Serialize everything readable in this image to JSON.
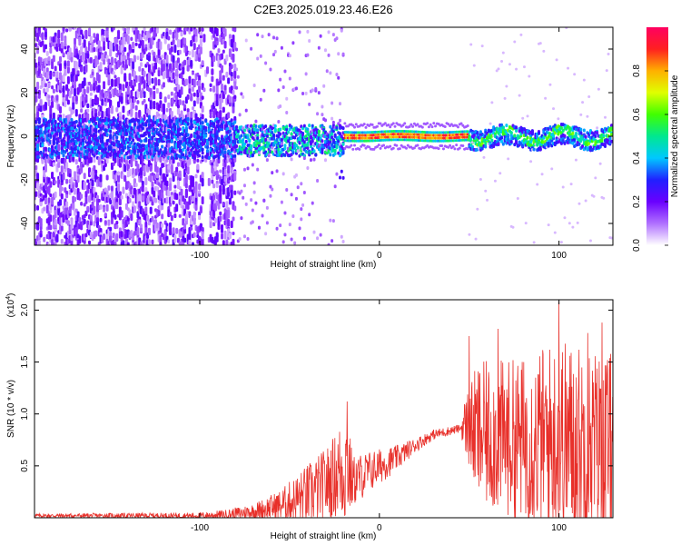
{
  "title": "C2E3.2025.019.23.46.E26",
  "chart_data": [
    {
      "type": "heatmap",
      "xlabel": "Height of straight line (km)",
      "ylabel": "Frequency (Hz)",
      "xlim": [
        -192,
        130
      ],
      "ylim": [
        -50,
        50
      ],
      "xticks": [
        -100,
        0,
        100
      ],
      "yticks": [
        40,
        20,
        0,
        -20,
        -40
      ],
      "colorbar": {
        "label": "Normalized spectral amplitude",
        "range": [
          0,
          1
        ],
        "ticks": [
          0.0,
          0.2,
          0.4,
          0.6,
          0.8
        ],
        "colormap": "white-violet-blue-cyan-green-yellow-red",
        "stops": [
          "#ffffff",
          "#b070ff",
          "#6a00ff",
          "#2020ff",
          "#00c8ff",
          "#00e890",
          "#40ff00",
          "#e0ff00",
          "#ffb000",
          "#ff2020",
          "#ff0060"
        ]
      },
      "features": [
        {
          "region": "x < -80",
          "description": "diffuse broadband violet speckle, stronger band near 0 Hz"
        },
        {
          "region": "-80 to -20",
          "description": "narrowing band 0 to -10 Hz, blue/cyan"
        },
        {
          "region": "-20 to 50",
          "description": "tight band near 0 Hz, red/green core"
        },
        {
          "region": "50 to 130",
          "description": "band near 0 Hz, cyan/green"
        }
      ]
    },
    {
      "type": "line",
      "xlabel": "Height of straight line (km)",
      "ylabel": "SNR (10 * v/v)",
      "yscale_label": "(x10^4)",
      "scale_base": "(x10",
      "scale_exp": "4",
      "xlim": [
        -192,
        130
      ],
      "ylim": [
        0,
        2.1
      ],
      "xticks": [
        -100,
        0,
        100
      ],
      "yticks": [
        0.5,
        1.0,
        1.5,
        2.0
      ],
      "series": [
        {
          "color": "#e8302a",
          "envelope": [
            {
              "x": -192,
              "base": 0.02,
              "amp": 0.02
            },
            {
              "x": -100,
              "base": 0.02,
              "amp": 0.03
            },
            {
              "x": -85,
              "base": 0.03,
              "amp": 0.05
            },
            {
              "x": -70,
              "base": 0.06,
              "amp": 0.08
            },
            {
              "x": -55,
              "base": 0.12,
              "amp": 0.15
            },
            {
              "x": -40,
              "base": 0.22,
              "amp": 0.3
            },
            {
              "x": -30,
              "base": 0.32,
              "amp": 0.35
            },
            {
              "x": -25,
              "base": 0.4,
              "amp": 0.4
            },
            {
              "x": -18,
              "base": 0.5,
              "amp": 0.6
            },
            {
              "x": -15,
              "base": 0.35,
              "amp": 0.25
            },
            {
              "x": -5,
              "base": 0.45,
              "amp": 0.2
            },
            {
              "x": 10,
              "base": 0.58,
              "amp": 0.12
            },
            {
              "x": 20,
              "base": 0.7,
              "amp": 0.07
            },
            {
              "x": 30,
              "base": 0.8,
              "amp": 0.05
            },
            {
              "x": 45,
              "base": 0.86,
              "amp": 0.04
            },
            {
              "x": 48,
              "base": 0.9,
              "amp": 0.3
            },
            {
              "x": 55,
              "base": 0.8,
              "amp": 0.7
            },
            {
              "x": 80,
              "base": 0.75,
              "amp": 0.8
            },
            {
              "x": 100,
              "base": 0.75,
              "amp": 1.0
            },
            {
              "x": 130,
              "base": 0.7,
              "amp": 0.9
            }
          ],
          "peaks": [
            {
              "x": 100,
              "y": 2.08
            },
            {
              "x": 124,
              "y": 1.88
            },
            {
              "x": 116,
              "y": 1.78
            },
            {
              "x": 66,
              "y": 1.82
            },
            {
              "x": 50,
              "y": 1.75
            },
            {
              "x": -18,
              "y": 1.12
            }
          ]
        }
      ]
    }
  ]
}
